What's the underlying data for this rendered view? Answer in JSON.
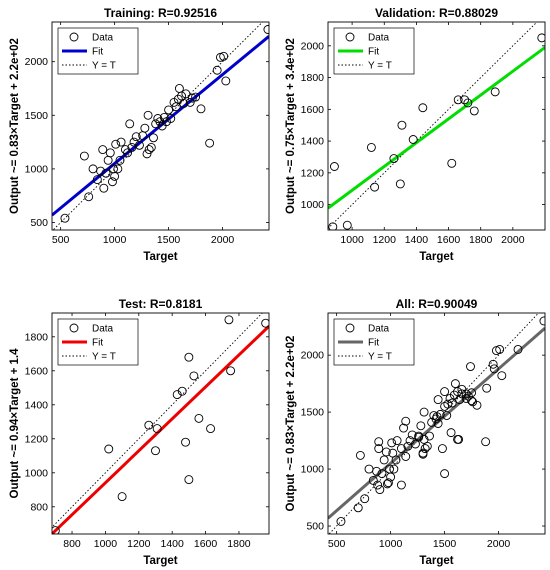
{
  "chart_data": [
    {
      "type": "scatter",
      "title": "Training: R=0.92516",
      "xlabel": "Target",
      "ylabel": "Output ~= 0.83×Target + 2.2e+02",
      "xlim": [
        420,
        2430
      ],
      "ylim": [
        430,
        2370
      ],
      "xticks": [
        500,
        1000,
        1500,
        2000
      ],
      "yticks": [
        500,
        1000,
        1500,
        2000
      ],
      "fit": {
        "slope": 0.83,
        "intercept": 220,
        "color": "#0000cc"
      },
      "legend": {
        "position": "top-left",
        "entries": [
          "Data",
          "Fit",
          "Y = T"
        ]
      },
      "points": [
        [
          540,
          540
        ],
        [
          720,
          1120
        ],
        [
          760,
          740
        ],
        [
          800,
          1000
        ],
        [
          840,
          900
        ],
        [
          870,
          980
        ],
        [
          890,
          1180
        ],
        [
          900,
          820
        ],
        [
          920,
          960
        ],
        [
          940,
          1080
        ],
        [
          960,
          1150
        ],
        [
          980,
          880
        ],
        [
          990,
          1000
        ],
        [
          1000,
          930
        ],
        [
          1010,
          1230
        ],
        [
          1030,
          1000
        ],
        [
          1050,
          1080
        ],
        [
          1060,
          1250
        ],
        [
          1100,
          1180
        ],
        [
          1120,
          1150
        ],
        [
          1140,
          1420
        ],
        [
          1160,
          1200
        ],
        [
          1180,
          1250
        ],
        [
          1200,
          1300
        ],
        [
          1230,
          1220
        ],
        [
          1260,
          1310
        ],
        [
          1280,
          1380
        ],
        [
          1300,
          1140
        ],
        [
          1310,
          1500
        ],
        [
          1320,
          1180
        ],
        [
          1340,
          1200
        ],
        [
          1360,
          1290
        ],
        [
          1380,
          1420
        ],
        [
          1400,
          1470
        ],
        [
          1420,
          1440
        ],
        [
          1440,
          1400
        ],
        [
          1460,
          1480
        ],
        [
          1480,
          1440
        ],
        [
          1500,
          1550
        ],
        [
          1520,
          1470
        ],
        [
          1550,
          1620
        ],
        [
          1570,
          1580
        ],
        [
          1590,
          1650
        ],
        [
          1600,
          1750
        ],
        [
          1620,
          1680
        ],
        [
          1640,
          1610
        ],
        [
          1660,
          1700
        ],
        [
          1700,
          1620
        ],
        [
          1720,
          1660
        ],
        [
          1750,
          1670
        ],
        [
          1800,
          1560
        ],
        [
          1880,
          1240
        ],
        [
          1950,
          1920
        ],
        [
          1980,
          2040
        ],
        [
          2010,
          2050
        ],
        [
          2030,
          1820
        ],
        [
          2420,
          2300
        ]
      ]
    },
    {
      "type": "scatter",
      "title": "Validation: R=0.88029",
      "xlabel": "Target",
      "ylabel": "Output ~= 0.75×Target + 3.4e+02",
      "xlim": [
        850,
        2200
      ],
      "ylim": [
        840,
        2150
      ],
      "xticks": [
        1000,
        1200,
        1400,
        1600,
        1800,
        2000
      ],
      "yticks": [
        1000,
        1200,
        1400,
        1600,
        1800,
        2000
      ],
      "fit": {
        "slope": 0.75,
        "intercept": 340,
        "color": "#00dd00"
      },
      "legend": {
        "position": "top-left",
        "entries": [
          "Data",
          "Fit",
          "Y = T"
        ]
      },
      "points": [
        [
          880,
          860
        ],
        [
          890,
          1240
        ],
        [
          970,
          870
        ],
        [
          1120,
          1360
        ],
        [
          1140,
          1110
        ],
        [
          1260,
          1290
        ],
        [
          1300,
          1130
        ],
        [
          1310,
          1500
        ],
        [
          1380,
          1410
        ],
        [
          1440,
          1610
        ],
        [
          1620,
          1260
        ],
        [
          1660,
          1660
        ],
        [
          1700,
          1660
        ],
        [
          1720,
          1640
        ],
        [
          1760,
          1590
        ],
        [
          1890,
          1710
        ],
        [
          2180,
          2050
        ]
      ]
    },
    {
      "type": "scatter",
      "title": "Test: R=0.8181",
      "xlabel": "Target",
      "ylabel": "Output ~= 0.94×Target + 1.4",
      "xlim": [
        680,
        1980
      ],
      "ylim": [
        640,
        1940
      ],
      "xticks": [
        800,
        1000,
        1200,
        1400,
        1600,
        1800
      ],
      "yticks": [
        800,
        1000,
        1200,
        1400,
        1600,
        1800
      ],
      "fit": {
        "slope": 0.94,
        "intercept": 1.4,
        "color": "#ee0000"
      },
      "legend": {
        "position": "top-left",
        "entries": [
          "Data",
          "Fit",
          "Y = T"
        ]
      },
      "points": [
        [
          700,
          660
        ],
        [
          1020,
          1140
        ],
        [
          1100,
          860
        ],
        [
          1260,
          1280
        ],
        [
          1300,
          1130
        ],
        [
          1310,
          1260
        ],
        [
          1430,
          1460
        ],
        [
          1460,
          1480
        ],
        [
          1480,
          1180
        ],
        [
          1500,
          1680
        ],
        [
          1500,
          960
        ],
        [
          1530,
          1570
        ],
        [
          1560,
          1320
        ],
        [
          1630,
          1260
        ],
        [
          1740,
          1900
        ],
        [
          1750,
          1600
        ],
        [
          1960,
          1880
        ]
      ]
    },
    {
      "type": "scatter",
      "title": "All: R=0.90049",
      "xlabel": "Target",
      "ylabel": "Output ~= 0.83×Target + 2.2e+02",
      "xlim": [
        420,
        2430
      ],
      "ylim": [
        430,
        2370
      ],
      "xticks": [
        500,
        1000,
        1500,
        2000
      ],
      "yticks": [
        500,
        1000,
        1500,
        2000
      ],
      "fit": {
        "slope": 0.83,
        "intercept": 220,
        "color": "#666666"
      },
      "legend": {
        "position": "top-left",
        "entries": [
          "Data",
          "Fit",
          "Y = T"
        ]
      },
      "points": [
        [
          540,
          540
        ],
        [
          700,
          660
        ],
        [
          720,
          1120
        ],
        [
          760,
          740
        ],
        [
          800,
          1000
        ],
        [
          840,
          900
        ],
        [
          870,
          980
        ],
        [
          880,
          860
        ],
        [
          890,
          1240
        ],
        [
          890,
          1180
        ],
        [
          900,
          820
        ],
        [
          920,
          960
        ],
        [
          940,
          1080
        ],
        [
          960,
          1150
        ],
        [
          970,
          870
        ],
        [
          980,
          880
        ],
        [
          990,
          1000
        ],
        [
          1000,
          930
        ],
        [
          1010,
          1230
        ],
        [
          1020,
          1140
        ],
        [
          1030,
          1000
        ],
        [
          1050,
          1080
        ],
        [
          1060,
          1250
        ],
        [
          1100,
          860
        ],
        [
          1100,
          1180
        ],
        [
          1120,
          1360
        ],
        [
          1140,
          1110
        ],
        [
          1140,
          1420
        ],
        [
          1160,
          1200
        ],
        [
          1180,
          1250
        ],
        [
          1200,
          1300
        ],
        [
          1230,
          1220
        ],
        [
          1260,
          1290
        ],
        [
          1260,
          1280
        ],
        [
          1280,
          1380
        ],
        [
          1300,
          1140
        ],
        [
          1300,
          1130
        ],
        [
          1310,
          1500
        ],
        [
          1310,
          1260
        ],
        [
          1320,
          1180
        ],
        [
          1340,
          1200
        ],
        [
          1360,
          1290
        ],
        [
          1380,
          1410
        ],
        [
          1400,
          1470
        ],
        [
          1420,
          1440
        ],
        [
          1430,
          1460
        ],
        [
          1440,
          1610
        ],
        [
          1440,
          1400
        ],
        [
          1460,
          1480
        ],
        [
          1480,
          1180
        ],
        [
          1500,
          1550
        ],
        [
          1500,
          960
        ],
        [
          1500,
          1680
        ],
        [
          1520,
          1470
        ],
        [
          1530,
          1570
        ],
        [
          1550,
          1620
        ],
        [
          1560,
          1320
        ],
        [
          1570,
          1580
        ],
        [
          1590,
          1650
        ],
        [
          1600,
          1750
        ],
        [
          1620,
          1260
        ],
        [
          1620,
          1680
        ],
        [
          1630,
          1260
        ],
        [
          1640,
          1610
        ],
        [
          1660,
          1660
        ],
        [
          1660,
          1700
        ],
        [
          1700,
          1620
        ],
        [
          1700,
          1660
        ],
        [
          1720,
          1640
        ],
        [
          1740,
          1900
        ],
        [
          1750,
          1600
        ],
        [
          1750,
          1670
        ],
        [
          1760,
          1590
        ],
        [
          1800,
          1560
        ],
        [
          1880,
          1240
        ],
        [
          1890,
          1710
        ],
        [
          1950,
          1920
        ],
        [
          1960,
          1880
        ],
        [
          1980,
          2040
        ],
        [
          2010,
          2050
        ],
        [
          2030,
          1820
        ],
        [
          2180,
          2050
        ],
        [
          2420,
          2300
        ]
      ]
    }
  ]
}
